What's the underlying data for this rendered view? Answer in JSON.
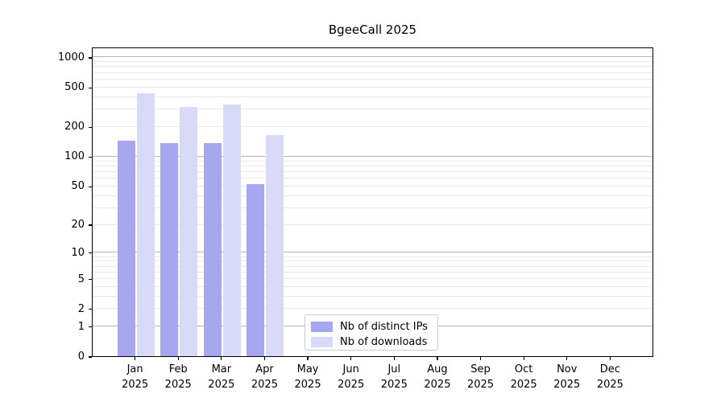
{
  "title": "BgeeCall 2025",
  "colors": {
    "ips_bar": "#a7a7f0",
    "downloads_bar": "#d9d9f8",
    "grid_major": "#b3b3b3",
    "grid_minor": "#e9e9e9",
    "axis": "#000000",
    "legend_border": "#cccccc"
  },
  "legend": {
    "items": [
      {
        "label": "Nb of distinct IPs"
      },
      {
        "label": "Nb of downloads"
      }
    ]
  },
  "chart_data": {
    "type": "bar",
    "title": "BgeeCall 2025",
    "categories": [
      "Jan 2025",
      "Feb 2025",
      "Mar 2025",
      "Apr 2025",
      "May 2025",
      "Jun 2025",
      "Jul 2025",
      "Aug 2025",
      "Sep 2025",
      "Oct 2025",
      "Nov 2025",
      "Dec 2025"
    ],
    "series": [
      {
        "name": "Nb of distinct IPs",
        "color": "#a7a7f0",
        "values": [
          145,
          137,
          137,
          52,
          null,
          null,
          null,
          null,
          null,
          null,
          null,
          null
        ]
      },
      {
        "name": "Nb of downloads",
        "color": "#d9d9f8",
        "values": [
          430,
          315,
          335,
          165,
          null,
          null,
          null,
          null,
          null,
          null,
          null,
          null
        ]
      }
    ],
    "xlabel": "",
    "ylabel": "",
    "y_scale": "log10(value+1)",
    "ylim": [
      0,
      1270
    ],
    "y_ticks": [
      0,
      1,
      2,
      5,
      10,
      20,
      50,
      100,
      200,
      500,
      1000
    ],
    "gridlines": {
      "major": [
        1,
        10,
        100,
        1000
      ],
      "minor": [
        2,
        3,
        4,
        5,
        6,
        7,
        8,
        9,
        20,
        30,
        40,
        50,
        60,
        70,
        80,
        90,
        200,
        300,
        400,
        500,
        600,
        700,
        800,
        900
      ]
    },
    "grid": "horizontal",
    "legend_position": "lower center"
  }
}
